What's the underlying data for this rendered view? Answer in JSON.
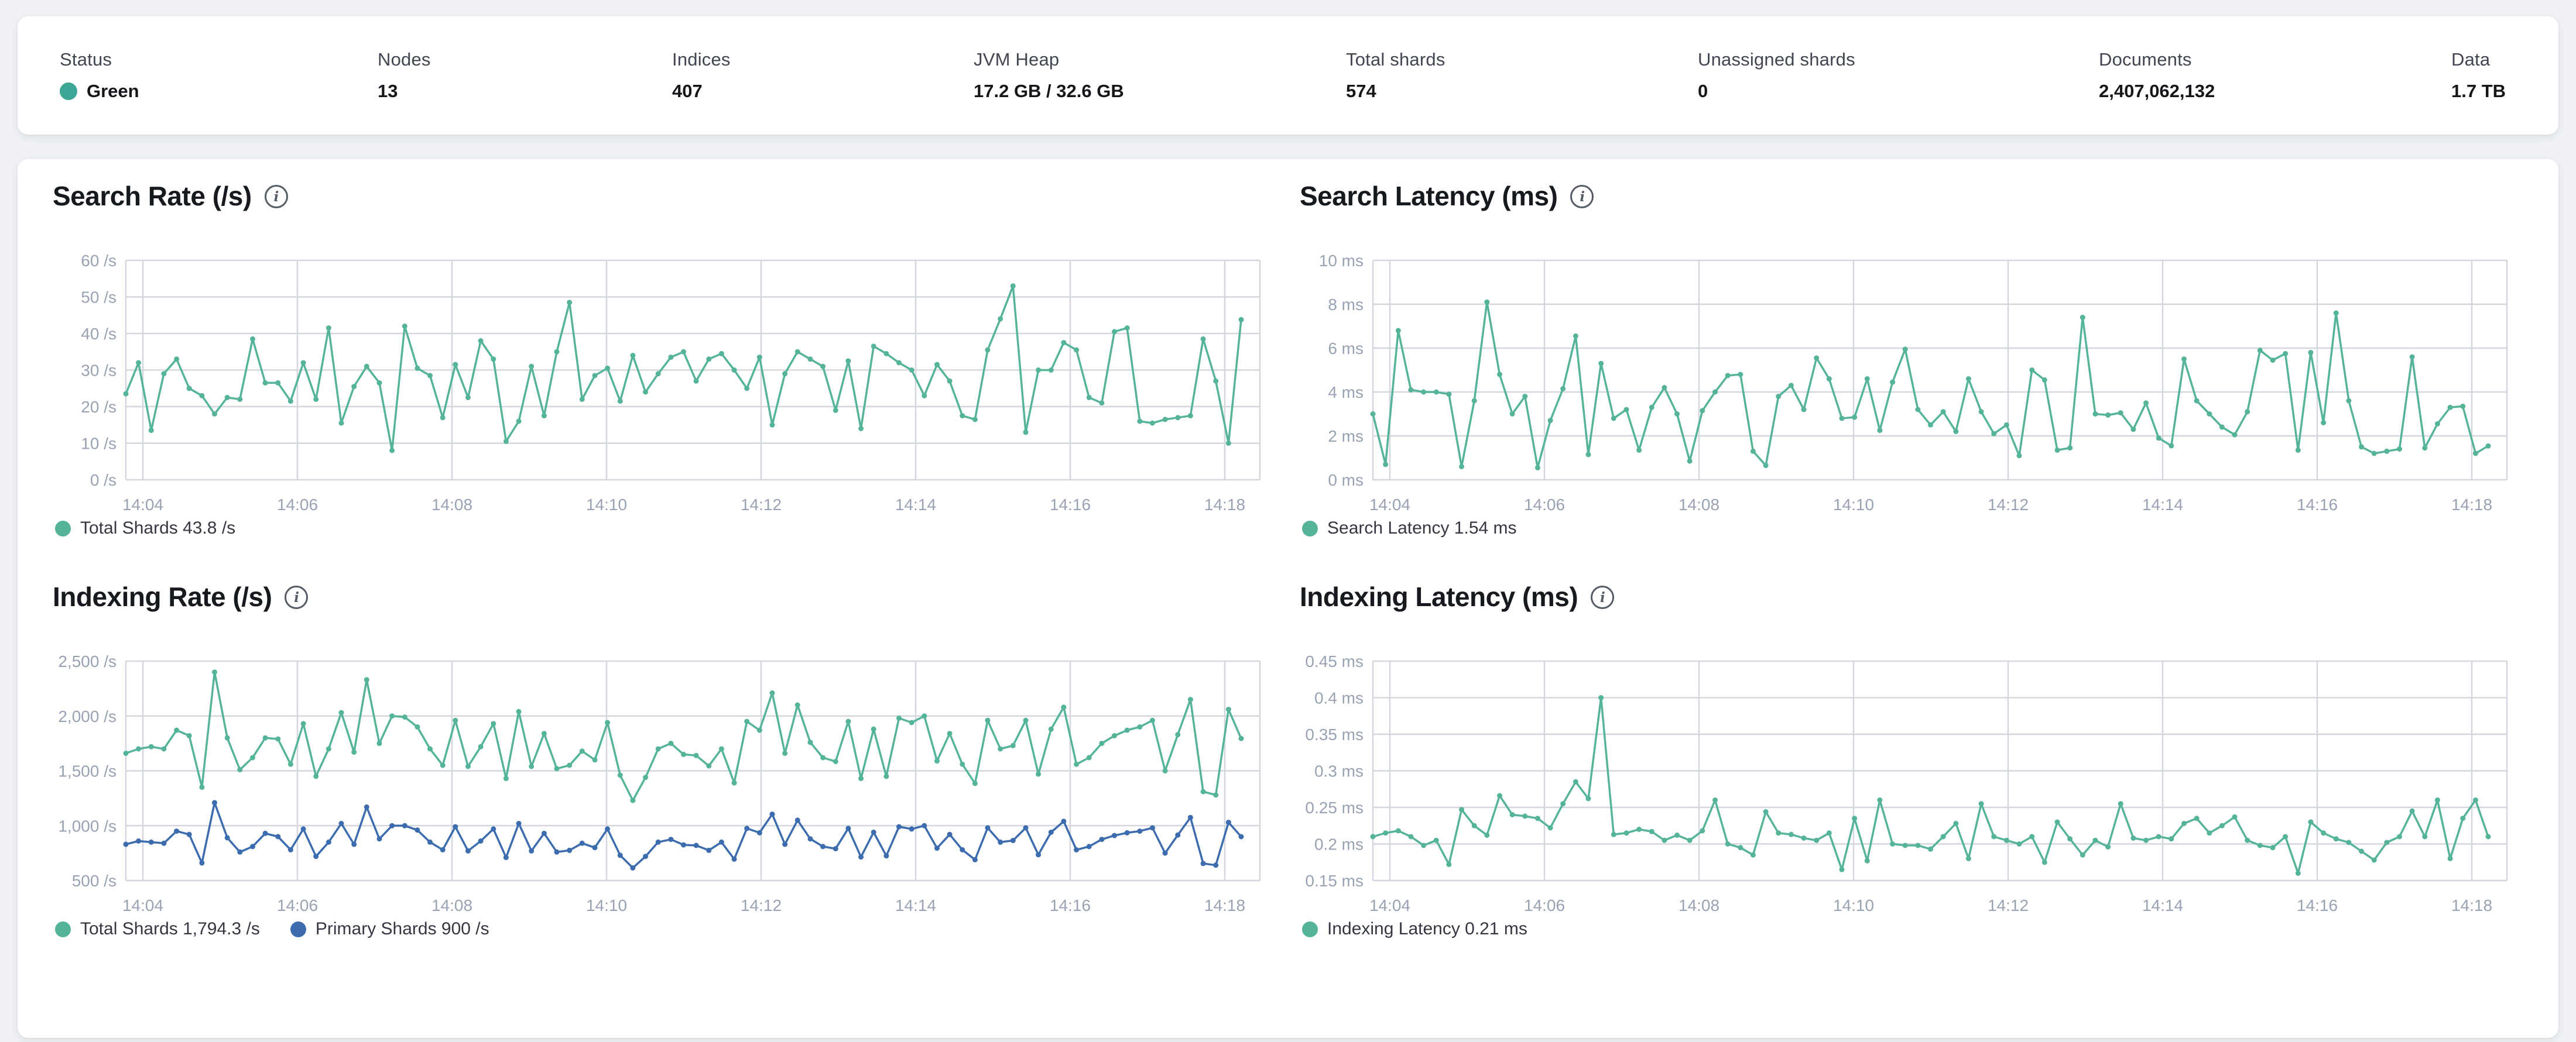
{
  "header": {
    "stats": [
      {
        "label": "Status",
        "value": "Green",
        "dot_color": "#3ca794"
      },
      {
        "label": "Nodes",
        "value": "13"
      },
      {
        "label": "Indices",
        "value": "407"
      },
      {
        "label": "JVM Heap",
        "value": "17.2 GB / 32.6 GB"
      },
      {
        "label": "Total shards",
        "value": "574"
      },
      {
        "label": "Unassigned shards",
        "value": "0"
      },
      {
        "label": "Documents",
        "value": "2,407,062,132"
      },
      {
        "label": "Data",
        "value": "1.7 TB"
      }
    ]
  },
  "colors": {
    "teal": "#54b399",
    "blue": "#3c6cae",
    "grid": "#d3d7dd",
    "axis_text": "#98a2b3"
  },
  "chart_data": [
    {
      "id": "search-rate",
      "type": "line",
      "title": "Search Rate (/s)",
      "ylim": [
        0,
        60
      ],
      "y_ticks": [
        {
          "v": 60,
          "label": "60 /s"
        },
        {
          "v": 50,
          "label": "50 /s"
        },
        {
          "v": 40,
          "label": "40 /s"
        },
        {
          "v": 30,
          "label": "30 /s"
        },
        {
          "v": 20,
          "label": "20 /s"
        },
        {
          "v": 10,
          "label": "10 /s"
        },
        {
          "v": 0,
          "label": "0 /s"
        }
      ],
      "x_ticks": [
        "14:04",
        "14:06",
        "14:08",
        "14:10",
        "14:12",
        "14:14",
        "14:16",
        "14:18"
      ],
      "grid": true,
      "legend_position": "bottom",
      "series": [
        {
          "name": "Total Shards",
          "legend": "Total Shards 43.8 /s",
          "color": "#54b399",
          "values": [
            23.5,
            32,
            13.5,
            29,
            33,
            25,
            23,
            18,
            22.5,
            22,
            38.5,
            26.5,
            26.5,
            21.5,
            32,
            22,
            41.5,
            15.5,
            25.5,
            31,
            26.5,
            8,
            42,
            30.5,
            28.5,
            17,
            31.5,
            22.5,
            38,
            33,
            10.5,
            16,
            31,
            17.5,
            35,
            48.5,
            22,
            28.5,
            30.5,
            21.5,
            34,
            24,
            29,
            33.5,
            35,
            27,
            33,
            34.5,
            30,
            25,
            33.5,
            15,
            29,
            35,
            33,
            31,
            19,
            32.5,
            14,
            36.5,
            34.5,
            32,
            30,
            23,
            31.5,
            27,
            17.5,
            16.5,
            35.5,
            44,
            53,
            13,
            30,
            30,
            37.5,
            35.5,
            22.5,
            21,
            40.5,
            41.5,
            16,
            15.5,
            16.5,
            17,
            17.5,
            38.5,
            27,
            10,
            43.8
          ]
        }
      ]
    },
    {
      "id": "search-latency",
      "type": "line",
      "title": "Search Latency (ms)",
      "ylim": [
        0,
        10
      ],
      "y_ticks": [
        {
          "v": 10,
          "label": "10 ms"
        },
        {
          "v": 8,
          "label": "8 ms"
        },
        {
          "v": 6,
          "label": "6 ms"
        },
        {
          "v": 4,
          "label": "4 ms"
        },
        {
          "v": 2,
          "label": "2 ms"
        },
        {
          "v": 0,
          "label": "0 ms"
        }
      ],
      "x_ticks": [
        "14:04",
        "14:06",
        "14:08",
        "14:10",
        "14:12",
        "14:14",
        "14:16",
        "14:18"
      ],
      "grid": true,
      "legend_position": "bottom",
      "series": [
        {
          "name": "Search Latency",
          "legend": "Search Latency 1.54 ms",
          "color": "#54b399",
          "values": [
            3.0,
            0.7,
            6.8,
            4.1,
            4.0,
            4.0,
            3.9,
            0.6,
            3.6,
            8.1,
            4.8,
            3.0,
            3.8,
            0.55,
            2.7,
            4.15,
            6.55,
            1.15,
            5.3,
            2.8,
            3.2,
            1.35,
            3.3,
            4.2,
            3.0,
            0.85,
            3.15,
            4.0,
            4.75,
            4.8,
            1.3,
            0.65,
            3.8,
            4.3,
            3.2,
            5.55,
            4.6,
            2.8,
            2.85,
            4.6,
            2.25,
            4.45,
            5.95,
            3.2,
            2.5,
            3.1,
            2.2,
            4.6,
            3.1,
            2.1,
            2.5,
            1.1,
            5.0,
            4.55,
            1.35,
            1.45,
            7.4,
            3.0,
            2.95,
            3.05,
            2.3,
            3.5,
            1.9,
            1.55,
            5.5,
            3.6,
            3.0,
            2.4,
            2.05,
            3.1,
            5.9,
            5.45,
            5.75,
            1.35,
            5.8,
            2.6,
            7.6,
            3.6,
            1.5,
            1.2,
            1.3,
            1.4,
            5.6,
            1.45,
            2.55,
            3.3,
            3.35,
            1.2,
            1.54
          ]
        }
      ]
    },
    {
      "id": "indexing-rate",
      "type": "line",
      "title": "Indexing Rate (/s)",
      "ylim": [
        500,
        2500
      ],
      "y_ticks": [
        {
          "v": 2500,
          "label": "2,500 /s"
        },
        {
          "v": 2000,
          "label": "2,000 /s"
        },
        {
          "v": 1500,
          "label": "1,500 /s"
        },
        {
          "v": 1000,
          "label": "1,000 /s"
        },
        {
          "v": 500,
          "label": "500 /s"
        }
      ],
      "x_ticks": [
        "14:04",
        "14:06",
        "14:08",
        "14:10",
        "14:12",
        "14:14",
        "14:16",
        "14:18"
      ],
      "grid": true,
      "legend_position": "bottom",
      "series": [
        {
          "name": "Total Shards",
          "legend": "Total Shards 1,794.3 /s",
          "color": "#54b399",
          "values": [
            1660,
            1700,
            1720,
            1700,
            1870,
            1820,
            1350,
            2400,
            1800,
            1510,
            1620,
            1800,
            1790,
            1560,
            1930,
            1450,
            1700,
            2030,
            1670,
            2330,
            1750,
            2000,
            1990,
            1900,
            1700,
            1550,
            1960,
            1540,
            1720,
            1930,
            1430,
            2040,
            1540,
            1840,
            1520,
            1550,
            1680,
            1600,
            1940,
            1460,
            1230,
            1440,
            1700,
            1750,
            1650,
            1640,
            1545,
            1700,
            1390,
            1950,
            1870,
            2210,
            1660,
            2100,
            1760,
            1620,
            1585,
            1950,
            1430,
            1880,
            1450,
            1980,
            1940,
            2000,
            1590,
            1840,
            1560,
            1385,
            1960,
            1700,
            1730,
            1960,
            1470,
            1880,
            2080,
            1560,
            1620,
            1750,
            1820,
            1870,
            1900,
            1960,
            1500,
            1830,
            2150,
            1310,
            1280,
            2060,
            1794.3
          ]
        },
        {
          "name": "Primary Shards",
          "legend": "Primary Shards 900 /s",
          "color": "#3c6cae",
          "values": [
            830,
            860,
            850,
            840,
            950,
            920,
            660,
            1210,
            890,
            760,
            810,
            930,
            900,
            780,
            970,
            720,
            850,
            1020,
            830,
            1170,
            880,
            1000,
            1000,
            960,
            850,
            780,
            990,
            770,
            860,
            970,
            710,
            1020,
            770,
            930,
            760,
            775,
            840,
            800,
            970,
            730,
            615,
            720,
            850,
            875,
            825,
            820,
            775,
            850,
            695,
            975,
            935,
            1105,
            830,
            1050,
            880,
            810,
            790,
            975,
            715,
            940,
            725,
            990,
            970,
            1000,
            795,
            920,
            780,
            690,
            980,
            850,
            865,
            980,
            735,
            940,
            1040,
            780,
            810,
            875,
            910,
            935,
            950,
            980,
            750,
            915,
            1075,
            655,
            640,
            1030,
            900
          ]
        }
      ]
    },
    {
      "id": "indexing-latency",
      "type": "line",
      "title": "Indexing Latency (ms)",
      "ylim": [
        0.15,
        0.45
      ],
      "y_ticks": [
        {
          "v": 0.45,
          "label": "0.45 ms"
        },
        {
          "v": 0.4,
          "label": "0.4 ms"
        },
        {
          "v": 0.35,
          "label": "0.35 ms"
        },
        {
          "v": 0.3,
          "label": "0.3 ms"
        },
        {
          "v": 0.25,
          "label": "0.25 ms"
        },
        {
          "v": 0.2,
          "label": "0.2 ms"
        },
        {
          "v": 0.15,
          "label": "0.15 ms"
        }
      ],
      "x_ticks": [
        "14:04",
        "14:06",
        "14:08",
        "14:10",
        "14:12",
        "14:14",
        "14:16",
        "14:18"
      ],
      "grid": true,
      "legend_position": "bottom",
      "series": [
        {
          "name": "Indexing Latency",
          "legend": "Indexing Latency 0.21 ms",
          "color": "#54b399",
          "values": [
            0.21,
            0.215,
            0.218,
            0.21,
            0.198,
            0.205,
            0.172,
            0.247,
            0.225,
            0.212,
            0.266,
            0.24,
            0.238,
            0.235,
            0.222,
            0.255,
            0.285,
            0.262,
            0.4,
            0.213,
            0.215,
            0.22,
            0.217,
            0.205,
            0.212,
            0.205,
            0.218,
            0.26,
            0.2,
            0.195,
            0.185,
            0.244,
            0.215,
            0.213,
            0.208,
            0.205,
            0.215,
            0.165,
            0.235,
            0.177,
            0.26,
            0.2,
            0.198,
            0.198,
            0.193,
            0.21,
            0.228,
            0.18,
            0.255,
            0.21,
            0.205,
            0.2,
            0.21,
            0.175,
            0.23,
            0.207,
            0.185,
            0.205,
            0.196,
            0.255,
            0.208,
            0.205,
            0.21,
            0.207,
            0.228,
            0.235,
            0.215,
            0.225,
            0.237,
            0.205,
            0.198,
            0.195,
            0.21,
            0.16,
            0.23,
            0.215,
            0.207,
            0.202,
            0.19,
            0.178,
            0.202,
            0.21,
            0.245,
            0.21,
            0.26,
            0.18,
            0.235,
            0.26,
            0.21
          ]
        }
      ]
    }
  ]
}
